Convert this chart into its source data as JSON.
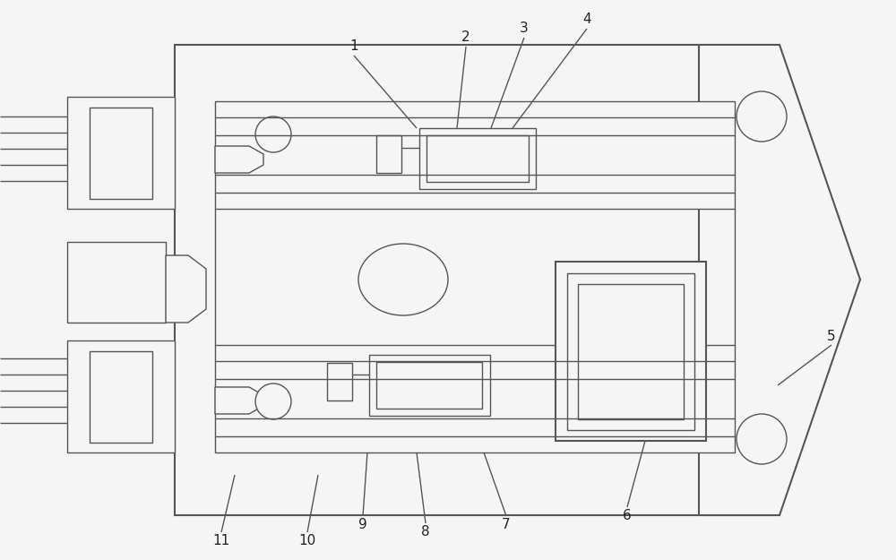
{
  "bg_color": "#f5f5f5",
  "lc": "#555555",
  "lw": 1.0,
  "lw2": 1.5,
  "label_fs": 11,
  "label_color": "#222222"
}
